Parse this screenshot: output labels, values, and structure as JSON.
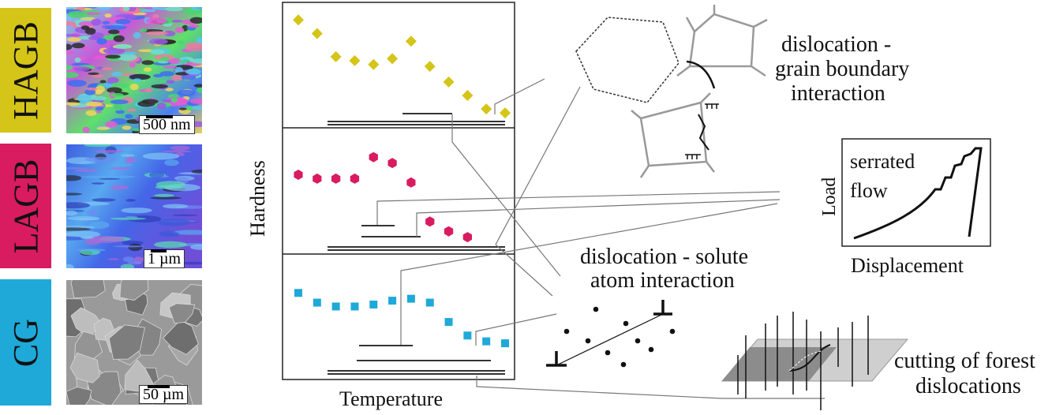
{
  "samples": [
    {
      "label": "HAGB",
      "color": "#d4c518",
      "scale_text": "500 nm"
    },
    {
      "label": "LAGB",
      "color": "#d91b5f",
      "scale_text": "1 µm"
    },
    {
      "label": "CG",
      "color": "#1fa9d8",
      "scale_text": "50 µm"
    }
  ],
  "axes": {
    "y_label": "Hardness",
    "x_label": "Temperature"
  },
  "mechanisms": {
    "gb_line1": "dislocation -",
    "gb_line2": "grain boundary",
    "gb_line3": "interaction",
    "solute_line1": "dislocation - solute",
    "solute_line2": "atom interaction",
    "forest_line1": "cutting of forest",
    "forest_line2": "dislocations"
  },
  "load_curve": {
    "text1": "serrated",
    "text2": "flow",
    "y_label": "Load",
    "x_label": "Displacement"
  },
  "chart_data": [
    {
      "type": "scatter",
      "sample": "HAGB",
      "marker": "diamond",
      "color": "#d4c518",
      "x": [
        1,
        2,
        3,
        4,
        5,
        6,
        7,
        8,
        9,
        10,
        11,
        12
      ],
      "y": [
        9.5,
        8.8,
        7.6,
        7.4,
        7.2,
        7.5,
        8.4,
        7.1,
        6.3,
        5.6,
        4.9,
        4.7
      ]
    },
    {
      "type": "scatter",
      "sample": "LAGB",
      "marker": "hexagon",
      "color": "#d91b5f",
      "x": [
        1,
        2,
        3,
        4,
        5,
        6,
        7,
        8,
        9,
        10
      ],
      "y": [
        8.0,
        7.8,
        7.8,
        7.8,
        8.9,
        8.6,
        7.6,
        5.6,
        5.1,
        4.8
      ]
    },
    {
      "type": "scatter",
      "sample": "CG",
      "marker": "square",
      "color": "#1fa9d8",
      "x": [
        1,
        2,
        3,
        4,
        5,
        6,
        7,
        8,
        9,
        10,
        11,
        12
      ],
      "y": [
        8.4,
        7.9,
        7.7,
        7.7,
        7.8,
        8.0,
        8.1,
        7.9,
        6.9,
        6.2,
        5.9,
        5.8
      ]
    }
  ]
}
